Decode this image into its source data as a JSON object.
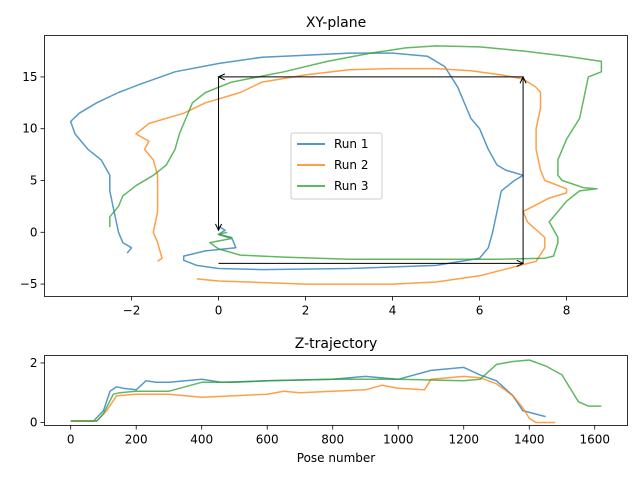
{
  "colors": {
    "run1": "#1f77b4",
    "run2": "#ff7f0e",
    "run3": "#2ca02c"
  },
  "chart_data": [
    {
      "type": "line",
      "title": "XY-plane",
      "xlabel": "",
      "ylabel": "",
      "xlim": [
        -4.0,
        9.4
      ],
      "ylim": [
        -6.2,
        19.0
      ],
      "xticks": [
        -2,
        0,
        2,
        4,
        6,
        8
      ],
      "yticks": [
        -5,
        0,
        5,
        10,
        15
      ],
      "grid": false,
      "legend": {
        "position": "center",
        "entries": [
          "Run 1",
          "Run 2",
          "Run 3"
        ]
      },
      "series": [
        {
          "name": "Run 1",
          "color": "#1f77b4",
          "points": [
            [
              -2.1,
              -2.0
            ],
            [
              -2.0,
              -1.5
            ],
            [
              -2.2,
              -1.0
            ],
            [
              -2.3,
              0.0
            ],
            [
              -2.4,
              2.0
            ],
            [
              -2.5,
              4.0
            ],
            [
              -2.5,
              5.5
            ],
            [
              -2.7,
              7.0
            ],
            [
              -3.0,
              8.0
            ],
            [
              -3.3,
              9.5
            ],
            [
              -3.4,
              10.7
            ],
            [
              -3.2,
              11.5
            ],
            [
              -2.8,
              12.5
            ],
            [
              -2.3,
              13.5
            ],
            [
              -1.8,
              14.3
            ],
            [
              -1.0,
              15.5
            ],
            [
              0.0,
              16.3
            ],
            [
              1.0,
              16.9
            ],
            [
              2.0,
              17.1
            ],
            [
              3.0,
              17.3
            ],
            [
              4.0,
              17.3
            ],
            [
              4.8,
              17.0
            ],
            [
              5.2,
              16.0
            ],
            [
              5.5,
              14.0
            ],
            [
              5.7,
              12.0
            ],
            [
              5.8,
              11.0
            ],
            [
              6.0,
              10.0
            ],
            [
              6.2,
              8.0
            ],
            [
              6.4,
              6.5
            ],
            [
              6.6,
              6.0
            ],
            [
              7.0,
              5.5
            ],
            [
              6.8,
              5.0
            ],
            [
              6.5,
              4.0
            ],
            [
              6.4,
              2.0
            ],
            [
              6.3,
              0.0
            ],
            [
              6.2,
              -1.5
            ],
            [
              6.0,
              -2.5
            ],
            [
              5.0,
              -3.2
            ],
            [
              3.0,
              -3.5
            ],
            [
              1.0,
              -3.6
            ],
            [
              0.0,
              -3.5
            ],
            [
              -0.5,
              -3.2
            ],
            [
              -0.8,
              -2.7
            ],
            [
              -0.8,
              -2.3
            ],
            [
              -0.3,
              -1.8
            ],
            [
              0.4,
              -1.5
            ],
            [
              0.3,
              -0.5
            ],
            [
              0.0,
              -0.2
            ],
            [
              0.15,
              0.2
            ],
            [
              0.0,
              0.6
            ]
          ]
        },
        {
          "name": "Run 2",
          "color": "#ff7f0e",
          "points": [
            [
              -1.4,
              -2.8
            ],
            [
              -1.3,
              -2.5
            ],
            [
              -1.4,
              -1.0
            ],
            [
              -1.5,
              0.0
            ],
            [
              -1.4,
              2.0
            ],
            [
              -1.4,
              4.0
            ],
            [
              -1.4,
              5.5
            ],
            [
              -1.5,
              7.0
            ],
            [
              -1.7,
              8.0
            ],
            [
              -1.6,
              8.8
            ],
            [
              -1.9,
              9.5
            ],
            [
              -1.6,
              10.5
            ],
            [
              -0.8,
              11.5
            ],
            [
              -0.3,
              12.5
            ],
            [
              0.5,
              13.5
            ],
            [
              1.0,
              14.5
            ],
            [
              2.0,
              15.2
            ],
            [
              3.0,
              15.7
            ],
            [
              4.0,
              15.8
            ],
            [
              5.0,
              15.8
            ],
            [
              5.8,
              15.6
            ],
            [
              6.5,
              15.2
            ],
            [
              7.0,
              14.8
            ],
            [
              7.3,
              14.0
            ],
            [
              7.4,
              13.5
            ],
            [
              7.4,
              12.0
            ],
            [
              7.3,
              10.0
            ],
            [
              7.3,
              8.0
            ],
            [
              7.4,
              6.0
            ],
            [
              7.5,
              5.0
            ],
            [
              8.0,
              4.2
            ],
            [
              8.0,
              3.8
            ],
            [
              7.6,
              3.3
            ],
            [
              7.0,
              2.0
            ],
            [
              7.1,
              1.0
            ],
            [
              7.5,
              -0.5
            ],
            [
              7.5,
              -1.5
            ],
            [
              7.3,
              -2.8
            ],
            [
              6.0,
              -4.2
            ],
            [
              5.0,
              -4.8
            ],
            [
              4.0,
              -5.0
            ],
            [
              2.0,
              -5.0
            ],
            [
              0.0,
              -4.7
            ],
            [
              -0.5,
              -4.5
            ]
          ]
        },
        {
          "name": "Run 3",
          "color": "#2ca02c",
          "points": [
            [
              -2.5,
              0.5
            ],
            [
              -2.5,
              1.5
            ],
            [
              -2.3,
              2.5
            ],
            [
              -2.2,
              3.5
            ],
            [
              -1.9,
              4.5
            ],
            [
              -1.5,
              5.5
            ],
            [
              -1.2,
              6.5
            ],
            [
              -1.0,
              8.0
            ],
            [
              -0.9,
              9.5
            ],
            [
              -0.8,
              10.5
            ],
            [
              -0.7,
              11.5
            ],
            [
              -0.6,
              12.5
            ],
            [
              -0.3,
              13.5
            ],
            [
              0.3,
              14.5
            ],
            [
              1.5,
              15.5
            ],
            [
              2.5,
              16.5
            ],
            [
              3.5,
              17.3
            ],
            [
              4.3,
              17.8
            ],
            [
              5.0,
              18.0
            ],
            [
              6.0,
              17.9
            ],
            [
              7.0,
              17.5
            ],
            [
              8.0,
              17.0
            ],
            [
              8.8,
              16.5
            ],
            [
              8.8,
              15.5
            ],
            [
              8.5,
              15.0
            ],
            [
              8.4,
              13.0
            ],
            [
              8.3,
              11.0
            ],
            [
              8.0,
              9.0
            ],
            [
              7.8,
              7.0
            ],
            [
              7.8,
              5.5
            ],
            [
              7.9,
              5.0
            ],
            [
              8.4,
              4.3
            ],
            [
              8.7,
              4.2
            ],
            [
              8.3,
              4.0
            ],
            [
              8.0,
              3.0
            ],
            [
              7.6,
              1.0
            ],
            [
              7.8,
              -0.5
            ],
            [
              7.8,
              -1.0
            ],
            [
              7.7,
              -2.3
            ],
            [
              7.5,
              -2.5
            ],
            [
              6.5,
              -2.6
            ],
            [
              5.0,
              -2.6
            ],
            [
              3.0,
              -2.6
            ],
            [
              1.5,
              -2.4
            ],
            [
              0.5,
              -2.2
            ],
            [
              0.0,
              -1.6
            ],
            [
              -0.2,
              -1.0
            ],
            [
              0.3,
              -0.6
            ],
            [
              0.0,
              -0.2
            ],
            [
              0.2,
              0.0
            ]
          ]
        }
      ],
      "arrows": [
        {
          "from": [
            7.0,
            15.0
          ],
          "to": [
            0.0,
            15.0
          ]
        },
        {
          "from": [
            0.0,
            15.0
          ],
          "to": [
            0.0,
            0.2
          ]
        },
        {
          "from": [
            0.0,
            -3.0
          ],
          "to": [
            7.0,
            -3.0
          ]
        },
        {
          "from": [
            7.0,
            -3.0
          ],
          "to": [
            7.0,
            15.0
          ]
        }
      ]
    },
    {
      "type": "line",
      "title": "Z-trajectory",
      "xlabel": "Pose number",
      "ylabel": "",
      "xlim": [
        -80,
        1700
      ],
      "ylim": [
        -0.1,
        2.25
      ],
      "xticks": [
        0,
        200,
        400,
        600,
        800,
        1000,
        1200,
        1400,
        1600
      ],
      "yticks": [
        0,
        2
      ],
      "grid": false,
      "series": [
        {
          "name": "Run 1",
          "color": "#1f77b4",
          "points": [
            [
              0,
              0.05
            ],
            [
              70,
              0.05
            ],
            [
              100,
              0.4
            ],
            [
              120,
              1.05
            ],
            [
              140,
              1.2
            ],
            [
              160,
              1.15
            ],
            [
              200,
              1.1
            ],
            [
              230,
              1.4
            ],
            [
              260,
              1.35
            ],
            [
              300,
              1.35
            ],
            [
              400,
              1.45
            ],
            [
              460,
              1.35
            ],
            [
              600,
              1.4
            ],
            [
              800,
              1.45
            ],
            [
              900,
              1.55
            ],
            [
              1000,
              1.45
            ],
            [
              1100,
              1.75
            ],
            [
              1200,
              1.85
            ],
            [
              1250,
              1.6
            ],
            [
              1300,
              1.4
            ],
            [
              1350,
              0.9
            ],
            [
              1380,
              0.4
            ],
            [
              1450,
              0.2
            ]
          ]
        },
        {
          "name": "Run 2",
          "color": "#ff7f0e",
          "points": [
            [
              0,
              0.05
            ],
            [
              80,
              0.05
            ],
            [
              110,
              0.4
            ],
            [
              140,
              0.9
            ],
            [
              200,
              0.95
            ],
            [
              300,
              0.95
            ],
            [
              400,
              0.85
            ],
            [
              500,
              0.9
            ],
            [
              600,
              0.95
            ],
            [
              650,
              1.05
            ],
            [
              700,
              1.0
            ],
            [
              800,
              1.05
            ],
            [
              900,
              1.1
            ],
            [
              950,
              1.25
            ],
            [
              1000,
              1.15
            ],
            [
              1080,
              1.1
            ],
            [
              1100,
              1.45
            ],
            [
              1200,
              1.55
            ],
            [
              1250,
              1.5
            ],
            [
              1300,
              1.3
            ],
            [
              1350,
              0.9
            ],
            [
              1380,
              0.5
            ],
            [
              1400,
              0.15
            ],
            [
              1420,
              0.0
            ],
            [
              1480,
              0.0
            ]
          ]
        },
        {
          "name": "Run 3",
          "color": "#2ca02c",
          "points": [
            [
              0,
              0.05
            ],
            [
              80,
              0.05
            ],
            [
              100,
              0.3
            ],
            [
              130,
              0.95
            ],
            [
              150,
              1.0
            ],
            [
              200,
              1.05
            ],
            [
              300,
              1.05
            ],
            [
              400,
              1.35
            ],
            [
              500,
              1.35
            ],
            [
              600,
              1.4
            ],
            [
              800,
              1.45
            ],
            [
              1000,
              1.45
            ],
            [
              1200,
              1.4
            ],
            [
              1250,
              1.45
            ],
            [
              1300,
              1.95
            ],
            [
              1350,
              2.05
            ],
            [
              1400,
              2.1
            ],
            [
              1450,
              1.9
            ],
            [
              1500,
              1.6
            ],
            [
              1550,
              0.7
            ],
            [
              1580,
              0.55
            ],
            [
              1620,
              0.55
            ]
          ]
        }
      ]
    }
  ]
}
